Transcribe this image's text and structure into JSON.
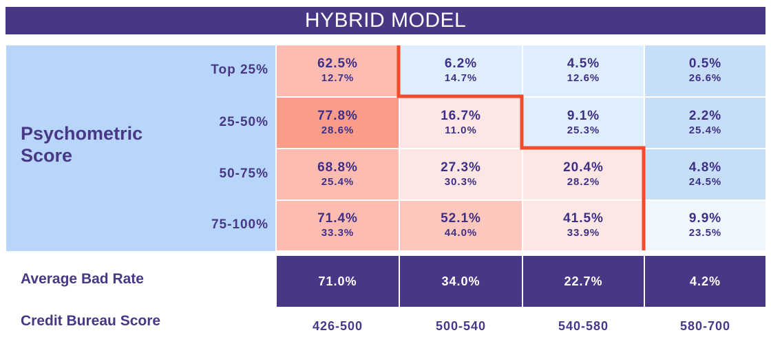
{
  "title": "HYBRID MODEL",
  "row_axis_label": "Psychometric\nScore",
  "avg_label": "Average Bad Rate",
  "col_axis_label": "Credit Bureau Score",
  "chart_data": {
    "type": "heatmap",
    "title": "HYBRID MODEL",
    "ylabel": "Psychometric Score",
    "xlabel": "Credit Bureau Score",
    "rows": [
      "Top 25%",
      "25-50%",
      "50-75%",
      "75-100%"
    ],
    "columns": [
      "426-500",
      "500-540",
      "540-580",
      "580-700"
    ],
    "bad_rate": [
      [
        "62.5%",
        "6.2%",
        "4.5%",
        "0.5%"
      ],
      [
        "77.8%",
        "16.7%",
        "9.1%",
        "2.2%"
      ],
      [
        "68.8%",
        "27.3%",
        "20.4%",
        "4.8%"
      ],
      [
        "71.4%",
        "52.1%",
        "41.5%",
        "9.9%"
      ]
    ],
    "share": [
      [
        "12.7%",
        "14.7%",
        "12.6%",
        "26.6%"
      ],
      [
        "28.6%",
        "11.0%",
        "25.3%",
        "25.4%"
      ],
      [
        "25.4%",
        "30.3%",
        "28.2%",
        "24.5%"
      ],
      [
        "33.3%",
        "44.0%",
        "33.9%",
        "23.5%"
      ]
    ],
    "cell_colors": [
      [
        "#fcbcb2",
        "#dfeefd",
        "#dfeefd",
        "#c7def9"
      ],
      [
        "#fb9c89",
        "#fde7e5",
        "#dfeefd",
        "#c7def9"
      ],
      [
        "#fcbcb2",
        "#fde7e5",
        "#fde7e5",
        "#c7def9"
      ],
      [
        "#fcbcb2",
        "#fcc7bd",
        "#fde7e5",
        "#f0f6fe"
      ]
    ],
    "average_bad_rate": [
      "71.0%",
      "34.0%",
      "22.7%",
      "4.2%"
    ],
    "boundary_color": "#f24a2b"
  }
}
